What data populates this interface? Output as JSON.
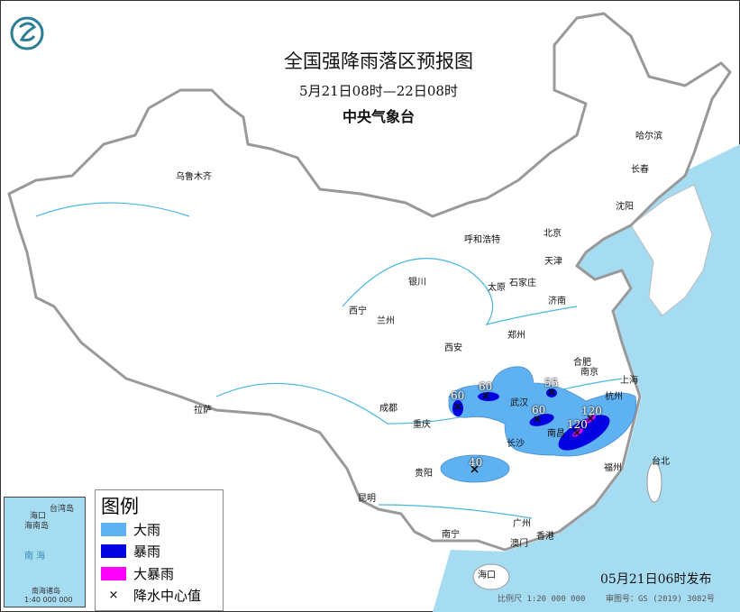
{
  "header": {
    "title": "全国强降雨落区预报图",
    "period": "5月21日08时—22日08时",
    "issuer": "中央气象台",
    "logo": "cma-logo"
  },
  "cities": [
    {
      "name": "乌鲁木齐"
    },
    {
      "name": "哈尔滨"
    },
    {
      "name": "长春"
    },
    {
      "name": "沈阳"
    },
    {
      "name": "北京"
    },
    {
      "name": "天津"
    },
    {
      "name": "呼和浩特"
    },
    {
      "name": "石家庄"
    },
    {
      "name": "太原"
    },
    {
      "name": "济南"
    },
    {
      "name": "银川"
    },
    {
      "name": "西宁"
    },
    {
      "name": "兰州"
    },
    {
      "name": "郑州"
    },
    {
      "name": "西安"
    },
    {
      "name": "合肥"
    },
    {
      "name": "南京"
    },
    {
      "name": "上海"
    },
    {
      "name": "杭州"
    },
    {
      "name": "武汉"
    },
    {
      "name": "成都"
    },
    {
      "name": "重庆"
    },
    {
      "name": "拉萨"
    },
    {
      "name": "长沙"
    },
    {
      "name": "南昌"
    },
    {
      "name": "福州"
    },
    {
      "name": "台北"
    },
    {
      "name": "贵阳"
    },
    {
      "name": "昆明"
    },
    {
      "name": "南宁"
    },
    {
      "name": "广州"
    },
    {
      "name": "香港"
    },
    {
      "name": "澳门"
    },
    {
      "name": "海口"
    }
  ],
  "rain_centers": [
    "60",
    "60",
    "55",
    "60",
    "120",
    "120",
    "40"
  ],
  "legend": {
    "title": "图例",
    "items": [
      {
        "label": "大雨",
        "color": "#5fb2f2"
      },
      {
        "label": "暴雨",
        "color": "#0000e0"
      },
      {
        "label": "大暴雨",
        "color": "#ff00ff"
      },
      {
        "label": "降水中心值",
        "symbol": "×"
      }
    ]
  },
  "inset": {
    "sea": "南 海",
    "islands": "南海诸岛",
    "scale": "1:40 000 000",
    "labels": [
      "海口",
      "海南岛",
      "台湾岛"
    ]
  },
  "footer": {
    "published": "05月21日06时发布",
    "scale": "比例尺 1:20 000 000",
    "review": "审图号：GS (2019) 3082号"
  },
  "colors": {
    "sea": "#a6dcf2",
    "heavy_rain": "#5fb2f2",
    "rainstorm": "#0000e0",
    "heavy_rainstorm": "#ff00ff"
  }
}
